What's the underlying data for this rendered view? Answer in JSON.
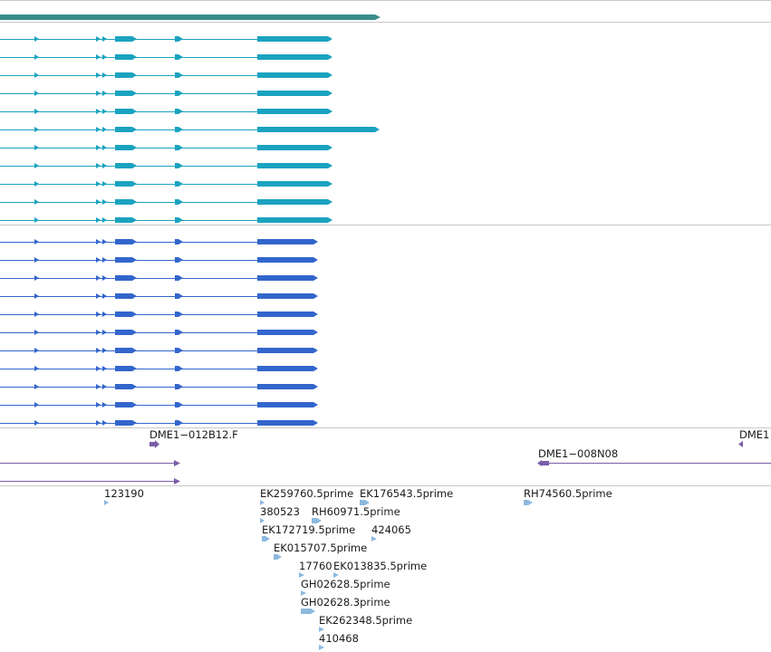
{
  "colors": {
    "top_gene": "#3a8c8c",
    "transcript_a": "#1aa3bf",
    "transcript_b": "#3366cc",
    "clone": "#7b5ea8",
    "est": "#8db9e0",
    "separator": "#c8c8c8"
  },
  "top_track": {
    "kind": "gene"
  },
  "track_a": {
    "kind": "transcripts",
    "count": 11
  },
  "track_b": {
    "kind": "transcripts",
    "count": 11
  },
  "clones": {
    "labels": [
      {
        "id": "c1",
        "text": "DME1−012B12.F"
      },
      {
        "id": "c2",
        "text": "DME1−008N08"
      },
      {
        "id": "c3",
        "text": "DME1"
      }
    ]
  },
  "ests": {
    "labels": [
      {
        "id": "e1",
        "text": "123190"
      },
      {
        "id": "e2",
        "text": "EK259760.5prime"
      },
      {
        "id": "e3",
        "text": "EK176543.5prime"
      },
      {
        "id": "e4",
        "text": "RH74560.5prime"
      },
      {
        "id": "e5",
        "text": "380523"
      },
      {
        "id": "e6",
        "text": "RH60971.5prime"
      },
      {
        "id": "e7",
        "text": "EK172719.5prime"
      },
      {
        "id": "e8",
        "text": "424065"
      },
      {
        "id": "e9",
        "text": "EK015707.5prime"
      },
      {
        "id": "e10",
        "text": "17760"
      },
      {
        "id": "e11",
        "text": "EK013835.5prime"
      },
      {
        "id": "e12",
        "text": "GH02628.5prime"
      },
      {
        "id": "e13",
        "text": "GH02628.3prime"
      },
      {
        "id": "e14",
        "text": "EK262348.5prime"
      },
      {
        "id": "e15",
        "text": "410468"
      }
    ]
  }
}
